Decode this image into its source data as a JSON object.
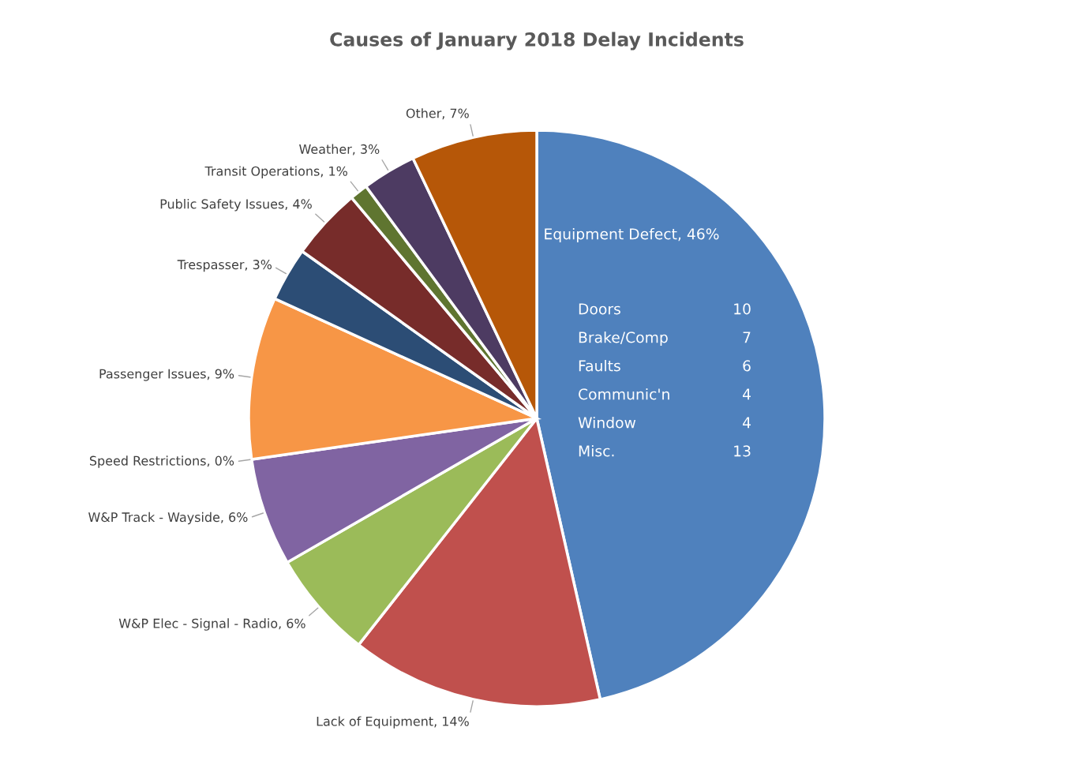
{
  "chart_data": {
    "type": "pie",
    "title": "Causes of January 2018 Delay Incidents",
    "categories": [
      "Equipment Defect",
      "Lack of Equipment",
      "W&P Elec - Signal - Radio",
      "W&P Track - Wayside",
      "Speed Restrictions",
      "Passenger Issues",
      "Trespasser",
      "Public Safety Issues",
      "Transit Operations",
      "Weather",
      "Other"
    ],
    "values": [
      46,
      14,
      6,
      6,
      0,
      9,
      3,
      4,
      1,
      3,
      7
    ],
    "value_labels": [
      "46%",
      "14%",
      "6%",
      "6%",
      "0%",
      "9%",
      "3%",
      "4%",
      "1%",
      "3%",
      "7%"
    ],
    "colors": [
      "#4f81bd",
      "#c0504d",
      "#9bbb59",
      "#8064a2",
      "#4bacc6",
      "#f79646",
      "#2c4d75",
      "#772c2a",
      "#5f7530",
      "#4d3b62",
      "#b65708"
    ],
    "annotations": [
      "Doors",
      "10",
      "Brake/Comp",
      "7",
      "Faults",
      "6",
      "Communic'n",
      "4",
      "Window",
      "4",
      "Misc.",
      "13"
    ]
  }
}
